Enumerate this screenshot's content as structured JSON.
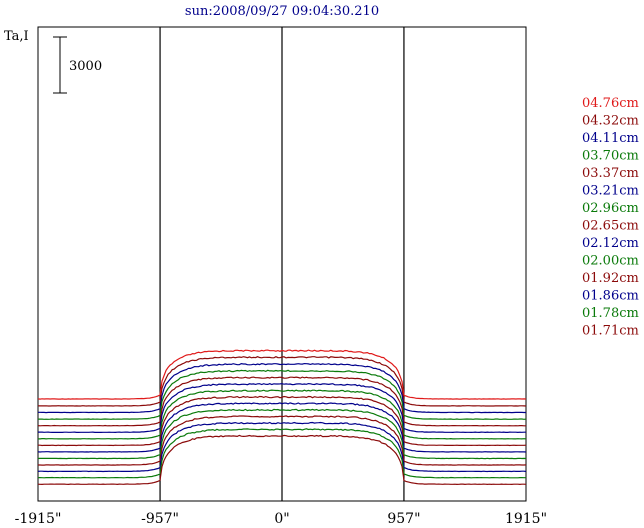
{
  "chart_data": {
    "type": "line",
    "title": "sun:2008/09/27 09:04:30.210",
    "ylabel": "Ta,I",
    "scale_bar_label": "3000",
    "xlim": [
      -1915,
      1915
    ],
    "x_ticks": [
      {
        "value": -1915,
        "label": "-1915\""
      },
      {
        "value": -957,
        "label": "-957\""
      },
      {
        "value": 0,
        "label": "0\""
      },
      {
        "value": 957,
        "label": "957\""
      },
      {
        "value": 1915,
        "label": "1915\""
      }
    ],
    "vertical_lines": [
      -957,
      0,
      957
    ],
    "grid": false,
    "legend_position": "right",
    "solar_radius_arcsec": 957,
    "series": [
      {
        "name": "04.76cm",
        "color": "#e01a1a",
        "disk_level": 6.7,
        "sky_level": 4.12
      },
      {
        "name": "04.32cm",
        "color": "#8b0a0a",
        "disk_level": 6.35,
        "sky_level": 3.75
      },
      {
        "name": "04.11cm",
        "color": "#00008b",
        "disk_level": 5.98,
        "sky_level": 3.4
      },
      {
        "name": "03.70cm",
        "color": "#0a7a0a",
        "disk_level": 5.62,
        "sky_level": 3.04
      },
      {
        "name": "03.37cm",
        "color": "#8b0a0a",
        "disk_level": 5.26,
        "sky_level": 2.69
      },
      {
        "name": "03.21cm",
        "color": "#00008b",
        "disk_level": 4.91,
        "sky_level": 2.34
      },
      {
        "name": "02.96cm",
        "color": "#0a7a0a",
        "disk_level": 4.56,
        "sky_level": 1.99
      },
      {
        "name": "02.65cm",
        "color": "#8b0a0a",
        "disk_level": 4.22,
        "sky_level": 1.64
      },
      {
        "name": "02.12cm",
        "color": "#00008b",
        "disk_level": 3.88,
        "sky_level": 1.29
      },
      {
        "name": "02.00cm",
        "color": "#0a7a0a",
        "disk_level": 3.53,
        "sky_level": 0.94
      },
      {
        "name": "01.92cm",
        "color": "#8b0a0a",
        "disk_level": 3.18,
        "sky_level": 0.59
      },
      {
        "name": "01.86cm",
        "color": "#00008b",
        "disk_level": 2.83,
        "sky_level": 0.25
      },
      {
        "name": "01.78cm",
        "color": "#0a7a0a",
        "disk_level": 2.49,
        "sky_level": -0.09
      },
      {
        "name": "01.71cm",
        "color": "#8b0a0a",
        "disk_level": 2.14,
        "sky_level": -0.44
      }
    ]
  }
}
